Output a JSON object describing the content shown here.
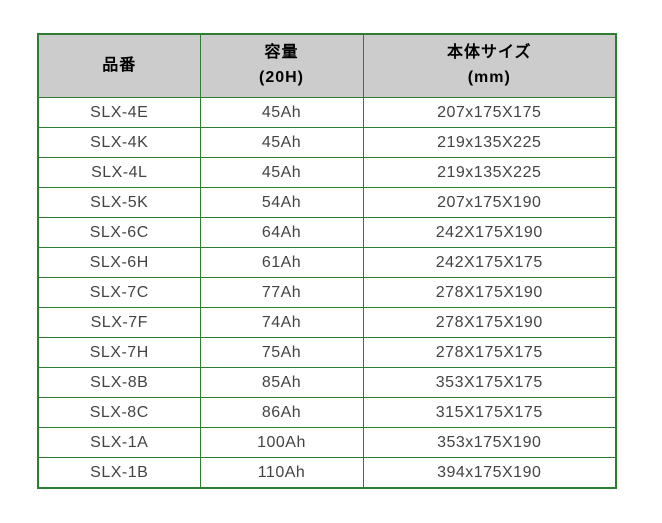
{
  "colors": {
    "table_border_green": "#2e7d32",
    "header_background": "#cccccc",
    "header_text": "#000000",
    "cell_text": "#444444",
    "page_background": "#ffffff"
  },
  "chart_data": {
    "type": "table",
    "columns": [
      {
        "title": "品番",
        "subtitle": ""
      },
      {
        "title": "容量",
        "subtitle": "(20H)"
      },
      {
        "title": "本体サイズ",
        "subtitle": "(mm)"
      }
    ],
    "rows": [
      [
        "SLX-4E",
        "45Ah",
        "207x175X175"
      ],
      [
        "SLX-4K",
        "45Ah",
        "219x135X225"
      ],
      [
        "SLX-4L",
        "45Ah",
        "219x135X225"
      ],
      [
        "SLX-5K",
        "54Ah",
        "207x175X190"
      ],
      [
        "SLX-6C",
        "64Ah",
        "242X175X190"
      ],
      [
        "SLX-6H",
        "61Ah",
        "242X175X175"
      ],
      [
        "SLX-7C",
        "77Ah",
        "278X175X190"
      ],
      [
        "SLX-7F",
        "74Ah",
        "278X175X190"
      ],
      [
        "SLX-7H",
        "75Ah",
        "278X175X175"
      ],
      [
        "SLX-8B",
        "85Ah",
        "353X175X175"
      ],
      [
        "SLX-8C",
        "86Ah",
        "315X175X175"
      ],
      [
        "SLX-1A",
        "100Ah",
        "353x175X190"
      ],
      [
        "SLX-1B",
        "110Ah",
        "394x175X190"
      ]
    ]
  }
}
